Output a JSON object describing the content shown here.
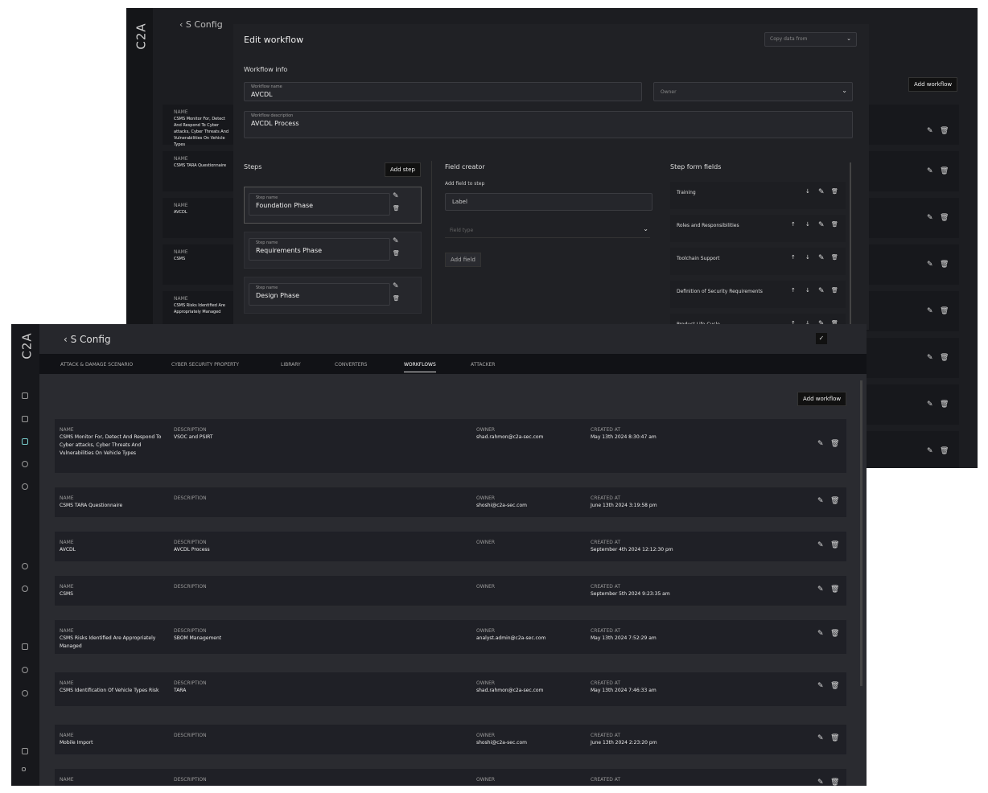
{
  "app": {
    "logo": "C2A",
    "title": "S Config"
  },
  "tabs": [
    {
      "label": "Attack & Damage Scenario"
    },
    {
      "label": "Cyber Security Property"
    },
    {
      "label": "Library"
    },
    {
      "label": "Converters"
    },
    {
      "label": "Workflows",
      "active": true
    },
    {
      "label": "Attacker"
    }
  ],
  "add_workflow": "Add workflow",
  "columns": {
    "name": "Name",
    "description": "Description",
    "owner": "Owner",
    "created": "Created At"
  },
  "rows": [
    {
      "name": "CSMS Monitor For, Detect And Respond To Cyber attacks, Cyber Threats And Vulnerabilities On Vehicle Types",
      "description": "VSOC and PSIRT",
      "owner": "shad.rahmon@c2a-sec.com",
      "created": "May 13th 2024 8:30:47 am"
    },
    {
      "name": "CSMS TARA Questionnaire",
      "description": "",
      "owner": "shoshi@c2a-sec.com",
      "created": "June 13th 2024 3:19:58 pm"
    },
    {
      "name": "AVCDL",
      "description": "AVCDL Process",
      "owner": "",
      "created": "September 4th 2024 12:12:30 pm"
    },
    {
      "name": "CSMS",
      "description": "",
      "owner": "",
      "created": "September 5th 2024 9:23:35 am"
    },
    {
      "name": "CSMS Risks Identified Are Appropriately Managed",
      "description": "SBOM Management",
      "owner": "analyst.admin@c2a-sec.com",
      "created": "May 13th 2024 7:52:29 am"
    },
    {
      "name": "CSMS Identification Of Vehicle Types Risk",
      "description": "TARA",
      "owner": "shad.rahmon@c2a-sec.com",
      "created": "May 13th 2024 7:46:33 am"
    },
    {
      "name": "Mobile Import",
      "description": "",
      "owner": "shoshi@c2a-sec.com",
      "created": "June 13th 2024 2:23:20 pm"
    },
    {
      "name": "",
      "description": "",
      "owner": "",
      "created": ""
    }
  ],
  "modal": {
    "title": "Edit workflow",
    "copy_from": "Copy data from",
    "info_title": "Workflow info",
    "name_label": "Workflow name",
    "name_value": "AVCDL",
    "owner_placeholder": "Owner",
    "desc_label": "Workflow description",
    "desc_value": "AVCDL Process",
    "steps_title": "Steps",
    "add_step": "Add step",
    "step_label": "Step name",
    "steps": [
      "Foundation Phase",
      "Requirements Phase",
      "Design Phase"
    ],
    "field_creator": "Field creator",
    "add_field_to_step": "Add field to step",
    "label_placeholder": "Label",
    "field_type_placeholder": "Field type",
    "add_field": "Add field",
    "form_fields_title": "Step form fields",
    "form_fields": [
      "Training",
      "Roles and Responsibilities",
      "Toolchain Support",
      "Definition of Security Requirements",
      "Product Life Cycle"
    ]
  }
}
